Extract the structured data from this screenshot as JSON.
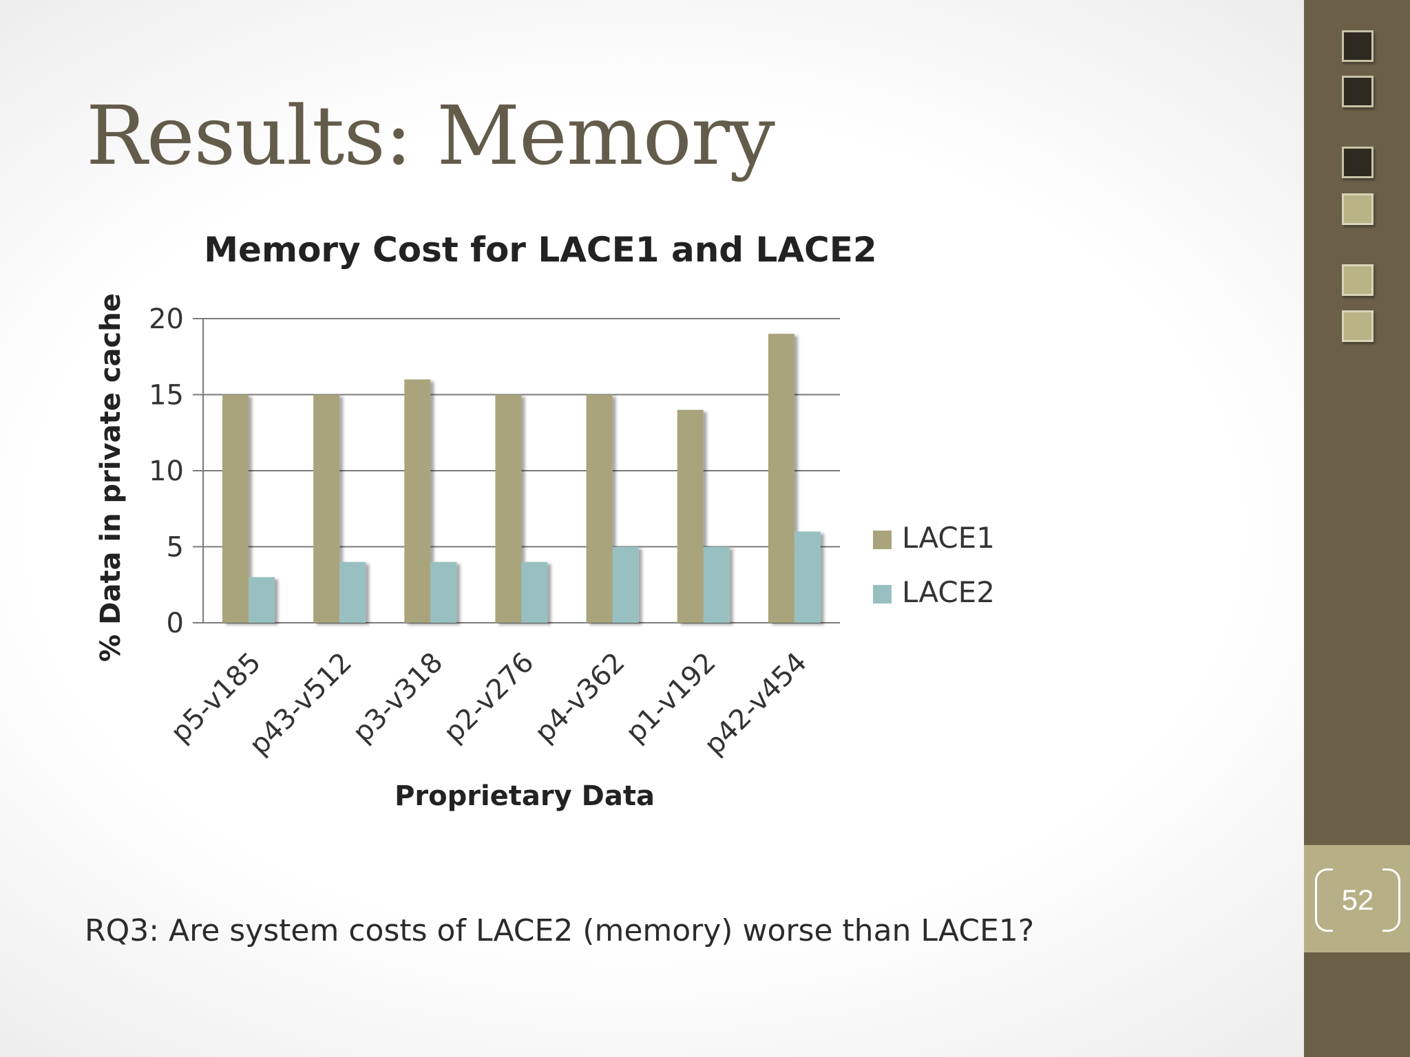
{
  "slide": {
    "title": "Results: Memory",
    "footer": "RQ3: Are system costs of LACE2 (memory) worse than LACE1?",
    "page_number": "52"
  },
  "colors": {
    "title": "#645c4a",
    "sidebar": "#6b5f47",
    "lace1": "#a9a47c",
    "lace2": "#99c0c1"
  },
  "chart_data": {
    "type": "bar",
    "title": "Memory Cost for LACE1 and LACE2",
    "xlabel": "Proprietary Data",
    "ylabel": "% Data in private cache",
    "categories": [
      "p5-v185",
      "p43-v512",
      "p3-v318",
      "p2-v276",
      "p4-v362",
      "p1-v192",
      "p42-v454"
    ],
    "series": [
      {
        "name": "LACE1",
        "values": [
          15,
          15,
          16,
          15,
          15,
          14,
          19
        ],
        "color": "#a9a47c"
      },
      {
        "name": "LACE2",
        "values": [
          3,
          4,
          4,
          4,
          5,
          5,
          6
        ],
        "color": "#99c0c1"
      }
    ],
    "ylim": [
      0,
      20
    ],
    "yticks": [
      0,
      5,
      10,
      15,
      20
    ],
    "grid": true,
    "legend": "right"
  }
}
